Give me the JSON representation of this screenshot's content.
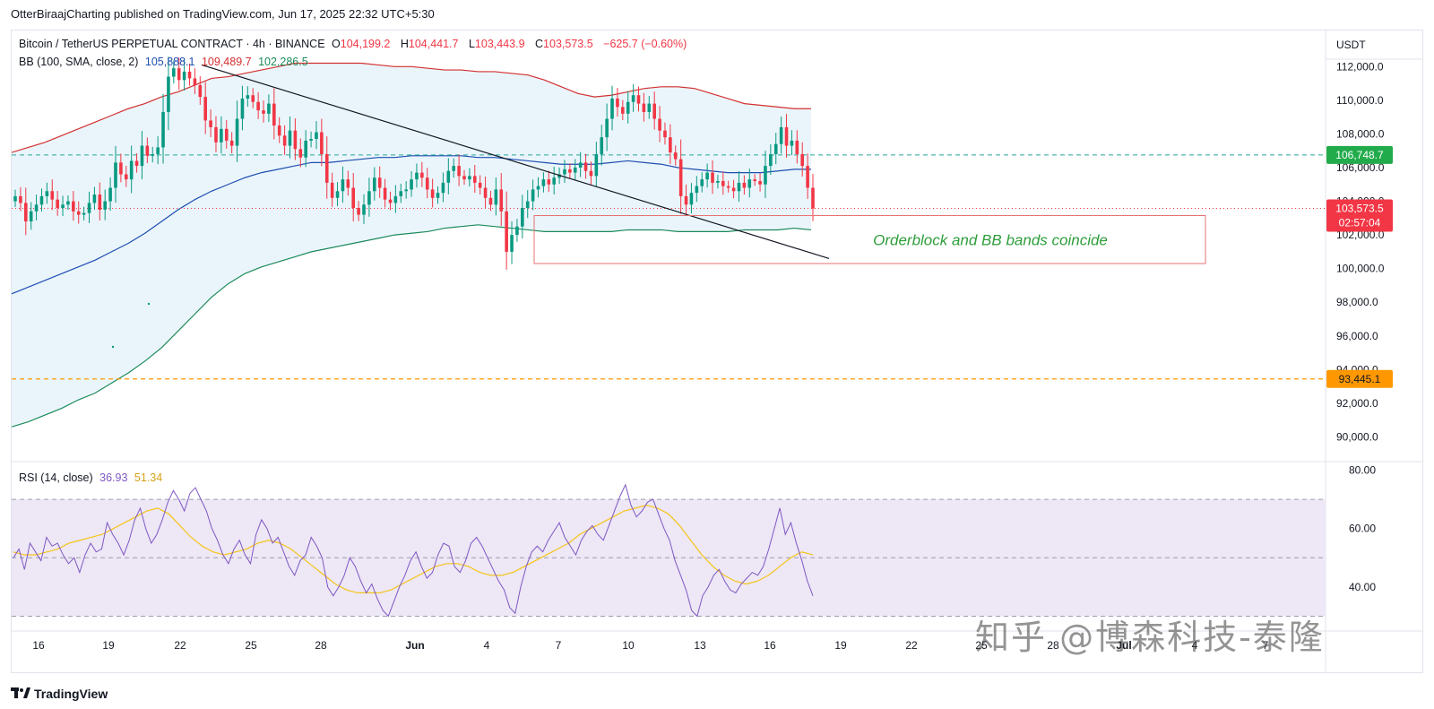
{
  "header": {
    "publisher_line": "OtterBiraajCharting published on TradingView.com, Jun 17, 2025 22:32 UTC+5:30"
  },
  "legend": {
    "symbol": "Bitcoin / TetherUS PERPETUAL CONTRACT · 4h · BINANCE",
    "o_label": "O",
    "o": "104,199.2",
    "h_label": "H",
    "h": "104,441.7",
    "l_label": "L",
    "l": "103,443.9",
    "c_label": "C",
    "c": "103,573.5",
    "change": "−625.7 (−0.60%)",
    "bb_label": "BB (100, SMA, close, 2)",
    "bb_basis": "105,888.1",
    "bb_upper": "109,489.7",
    "bb_lower": "102,286.5",
    "rsi_label": "RSI (14, close)",
    "rsi_value": "36.93",
    "rsi_ma": "51.34"
  },
  "colors": {
    "up": "#089981",
    "down": "#f23645",
    "bb_upper": "#d32f2f",
    "bb_basis": "#1e4eb0",
    "bb_lower": "#1b8a5a",
    "bb_fill": "#e8f4fb",
    "rsi": "#7e57c2",
    "rsi_ma": "#f5c518",
    "rsi_band": "#ede7f6"
  },
  "chart_data": [
    {
      "type": "candlestick",
      "currency": "USDT",
      "ylim": [
        88800,
        113400
      ],
      "y_ticks": [
        "112,000.0",
        "110,000.0",
        "108,000.0",
        "106,000.0",
        "104,000.0",
        "102,000.0",
        "100,000.0",
        "98,000.0",
        "96,000.0",
        "94,000.0",
        "92,000.0",
        "90,000.0"
      ],
      "y_tick_values": [
        112000,
        110000,
        108000,
        106000,
        104000,
        102000,
        100000,
        98000,
        96000,
        94000,
        92000,
        90000
      ],
      "x_ticks": [
        "16",
        "19",
        "22",
        "25",
        "28",
        "Jun",
        "4",
        "7",
        "10",
        "13",
        "16",
        "19",
        "22",
        "25",
        "28",
        "Jul",
        "4",
        "7"
      ],
      "price_labels": {
        "green": "106,748.7",
        "current": "103,573.5",
        "countdown": "02:57:04",
        "orange": "93,445.1"
      },
      "levels": {
        "green_dashed": 106748.7,
        "current_dotted": 103573.5,
        "orange_dashed": 93445.1
      },
      "annotation": "Orderblock and BB bands coincide",
      "orderblock": {
        "price_top": 103150,
        "price_bottom": 100300
      },
      "trendline": {
        "from_price": 112100,
        "to_price": 100600
      },
      "closes": [
        104300,
        103900,
        102800,
        103400,
        103800,
        104300,
        104600,
        104100,
        103600,
        103800,
        104000,
        103400,
        103200,
        103300,
        103900,
        104400,
        103500,
        104000,
        104800,
        106300,
        105600,
        105300,
        106400,
        106100,
        107300,
        106700,
        106800,
        107200,
        109300,
        111400,
        111900,
        111200,
        111700,
        111300,
        110900,
        110200,
        108800,
        108400,
        107500,
        108300,
        107600,
        107300,
        108900,
        110100,
        110300,
        109900,
        109400,
        109200,
        109800,
        108500,
        107900,
        107300,
        108200,
        107100,
        106600,
        107600,
        107700,
        108100,
        106800,
        105100,
        104200,
        104600,
        105300,
        104800,
        103600,
        103200,
        103800,
        104600,
        105400,
        104800,
        104100,
        103900,
        104300,
        104600,
        104700,
        105300,
        105700,
        105400,
        104700,
        104200,
        104500,
        105100,
        105800,
        106100,
        105500,
        105300,
        105500,
        105100,
        104800,
        104200,
        103800,
        104700,
        103400,
        101000,
        102000,
        102500,
        103600,
        104000,
        104700,
        104900,
        105300,
        105000,
        105400,
        105600,
        105900,
        105700,
        106000,
        106300,
        105800,
        105500,
        106800,
        107800,
        108900,
        110100,
        109600,
        109200,
        109900,
        110300,
        109800,
        109300,
        109800,
        108900,
        108200,
        107800,
        106900,
        106500,
        104300,
        103800,
        104500,
        104900,
        105300,
        105700,
        105100,
        105200,
        104900,
        104800,
        104600,
        105100,
        104800,
        105300,
        105200,
        105000,
        106100,
        106800,
        107400,
        108400,
        107300,
        107600,
        106800,
        106100,
        104800,
        103573.5
      ],
      "bb_upper_curve": [
        106900,
        107200,
        107500,
        107900,
        108300,
        108700,
        109100,
        109500,
        109800,
        110200,
        110500,
        110900,
        111300,
        111400,
        111600,
        111800,
        112000,
        112200,
        112200,
        112200,
        112200,
        112200,
        112100,
        112000,
        112000,
        111900,
        111800,
        111800,
        111700,
        111700,
        111600,
        111500,
        111200,
        110800,
        110400,
        110200,
        110300,
        110500,
        110700,
        110800,
        110800,
        110700,
        110400,
        110100,
        109800,
        109700,
        109600,
        109500,
        109500
      ],
      "bb_basis_curve": [
        98500,
        98900,
        99300,
        99700,
        100100,
        100500,
        101000,
        101500,
        102100,
        102800,
        103500,
        104100,
        104600,
        105000,
        105400,
        105700,
        105900,
        106100,
        106300,
        106300,
        106400,
        106500,
        106600,
        106600,
        106700,
        106700,
        106700,
        106700,
        106600,
        106600,
        106500,
        106400,
        106300,
        106200,
        106200,
        106200,
        106300,
        106400,
        106300,
        106200,
        106000,
        105900,
        105800,
        105700,
        105700,
        105700,
        105800,
        105900,
        105900
      ],
      "bb_lower_curve": [
        90600,
        90900,
        91300,
        91700,
        92200,
        92600,
        93200,
        93800,
        94500,
        95300,
        96300,
        97300,
        98300,
        99100,
        99700,
        100100,
        100400,
        100700,
        101000,
        101200,
        101400,
        101600,
        101800,
        102000,
        102100,
        102200,
        102400,
        102500,
        102600,
        102500,
        102400,
        102300,
        102200,
        102200,
        102200,
        102200,
        102200,
        102300,
        102300,
        102300,
        102200,
        102200,
        102200,
        102200,
        102300,
        102300,
        102300,
        102400,
        102300
      ]
    },
    {
      "type": "line",
      "title": "RSI (14, close)",
      "ylim": [
        28,
        82
      ],
      "y_ticks": [
        "80.00",
        "60.00",
        "40.00"
      ],
      "y_tick_values": [
        80,
        60,
        40
      ],
      "bands": [
        70,
        50,
        30
      ],
      "series": [
        {
          "name": "RSI",
          "values": [
            50,
            53,
            46,
            55,
            52,
            49,
            57,
            54,
            55,
            51,
            48,
            50,
            45,
            51,
            55,
            52,
            53,
            62,
            58,
            55,
            51,
            56,
            63,
            67,
            60,
            55,
            58,
            63,
            69,
            73,
            70,
            66,
            72,
            74,
            70,
            66,
            60,
            56,
            51,
            48,
            53,
            56,
            51,
            48,
            58,
            63,
            60,
            55,
            57,
            52,
            47,
            44,
            49,
            51,
            57,
            54,
            50,
            40,
            37,
            40,
            44,
            50,
            47,
            42,
            38,
            41,
            36,
            32,
            30,
            35,
            40,
            44,
            49,
            52,
            47,
            43,
            45,
            51,
            55,
            54,
            47,
            45,
            49,
            55,
            57,
            54,
            50,
            46,
            42,
            39,
            33,
            31,
            40,
            47,
            52,
            54,
            52,
            56,
            59,
            62,
            57,
            54,
            51,
            56,
            59,
            61,
            58,
            56,
            61,
            66,
            71,
            75,
            68,
            64,
            66,
            69,
            70,
            65,
            60,
            56,
            49,
            44,
            39,
            32,
            30,
            37,
            40,
            44,
            46,
            42,
            39,
            38,
            41,
            43,
            45,
            44,
            47,
            53,
            60,
            67,
            58,
            62,
            55,
            49,
            42,
            37
          ]
        },
        {
          "name": "MA",
          "values": [
            52,
            51,
            51,
            52,
            53,
            55,
            56,
            57,
            58,
            60,
            62,
            64,
            66,
            67,
            65,
            61,
            57,
            54,
            52,
            51,
            52,
            53,
            55,
            56,
            55,
            53,
            50,
            47,
            44,
            41,
            39,
            38,
            38,
            38,
            39,
            41,
            43,
            45,
            47,
            48,
            48,
            47,
            45,
            44,
            44,
            45,
            47,
            49,
            51,
            53,
            55,
            58,
            60,
            62,
            64,
            66,
            67,
            68,
            67,
            65,
            61,
            56,
            51,
            47,
            44,
            42,
            41,
            42,
            44,
            47,
            50,
            52,
            51
          ]
        }
      ]
    }
  ]
}
